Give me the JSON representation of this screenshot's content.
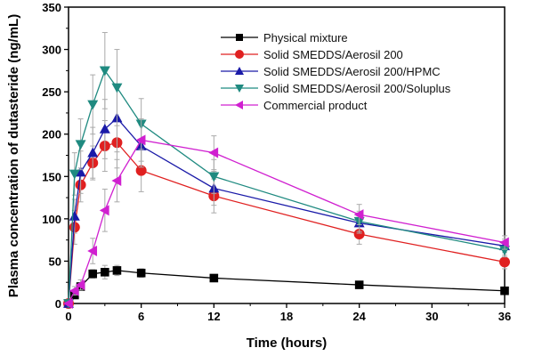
{
  "chart_data": {
    "type": "line",
    "title": "",
    "xlabel": "Time (hours)",
    "ylabel": "Plasma concentration of dutasteride (ng/mL)",
    "xlim": [
      0,
      36
    ],
    "ylim": [
      0,
      350
    ],
    "xticks": [
      0,
      6,
      12,
      18,
      24,
      30,
      36
    ],
    "yticks": [
      0,
      50,
      100,
      150,
      200,
      250,
      300,
      350
    ],
    "grid": false,
    "legend": "top-right",
    "series": [
      {
        "name": "Physical mixture",
        "color": "#000000",
        "marker": "square",
        "x": [
          0,
          0.5,
          1,
          2,
          3,
          4,
          6,
          12,
          24,
          36
        ],
        "y": [
          0,
          10,
          20,
          35,
          37,
          39,
          36,
          30,
          22,
          15
        ],
        "err": [
          0,
          3,
          4,
          5,
          8,
          6,
          5,
          4,
          3,
          3
        ]
      },
      {
        "name": "Solid SMEDDS/Aerosil 200",
        "color": "#e02020",
        "marker": "circle",
        "x": [
          0,
          0.5,
          1,
          2,
          3,
          4,
          6,
          12,
          24,
          36
        ],
        "y": [
          0,
          90,
          140,
          166,
          186,
          190,
          157,
          127,
          82,
          49
        ],
        "err": [
          0,
          20,
          20,
          20,
          30,
          30,
          25,
          20,
          12,
          8
        ]
      },
      {
        "name": "Solid SMEDDS/Aerosil 200/HPMC",
        "color": "#1a1aa8",
        "marker": "triangle-up",
        "x": [
          0,
          0.5,
          1,
          2,
          3,
          4,
          6,
          12,
          24,
          36
        ],
        "y": [
          0,
          103,
          155,
          178,
          206,
          219,
          186,
          136,
          95,
          68
        ],
        "err": [
          0,
          20,
          25,
          30,
          35,
          40,
          25,
          20,
          12,
          8
        ]
      },
      {
        "name": "Solid SMEDDS/Aerosil 200/Soluplus",
        "color": "#1f8a80",
        "marker": "triangle-down",
        "x": [
          0,
          0.5,
          1,
          2,
          3,
          4,
          6,
          12,
          24,
          36
        ],
        "y": [
          0,
          153,
          188,
          235,
          275,
          255,
          212,
          150,
          97,
          63
        ],
        "err": [
          0,
          25,
          30,
          35,
          45,
          45,
          30,
          20,
          12,
          8
        ]
      },
      {
        "name": "Commercial product",
        "color": "#d020d0",
        "marker": "triangle-left",
        "x": [
          0,
          0.5,
          1,
          2,
          3,
          4,
          6,
          12,
          24,
          36
        ],
        "y": [
          0,
          15,
          22,
          62,
          110,
          145,
          193,
          178,
          105,
          72
        ],
        "err": [
          0,
          5,
          6,
          15,
          25,
          25,
          25,
          20,
          12,
          8
        ]
      }
    ]
  }
}
